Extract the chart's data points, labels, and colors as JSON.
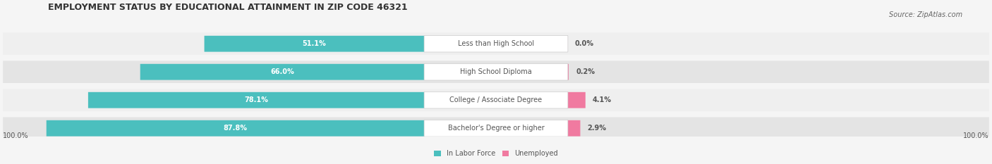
{
  "title": "EMPLOYMENT STATUS BY EDUCATIONAL ATTAINMENT IN ZIP CODE 46321",
  "source": "Source: ZipAtlas.com",
  "categories": [
    "Less than High School",
    "High School Diploma",
    "College / Associate Degree",
    "Bachelor's Degree or higher"
  ],
  "labor_force": [
    51.1,
    66.0,
    78.1,
    87.8
  ],
  "unemployed": [
    0.0,
    0.2,
    4.1,
    2.9
  ],
  "labor_force_color": "#4BBFBE",
  "unemployed_color": "#F07AA0",
  "bar_bg_color": "#E8E8E8",
  "row_bg_colors": [
    "#F0F0F0",
    "#E8E8E8"
  ],
  "label_bg_color": "#FFFFFF",
  "axis_label_left": "100.0%",
  "axis_label_right": "100.0%",
  "title_fontsize": 9,
  "source_fontsize": 7,
  "bar_label_fontsize": 7,
  "category_fontsize": 7,
  "axis_fontsize": 7
}
